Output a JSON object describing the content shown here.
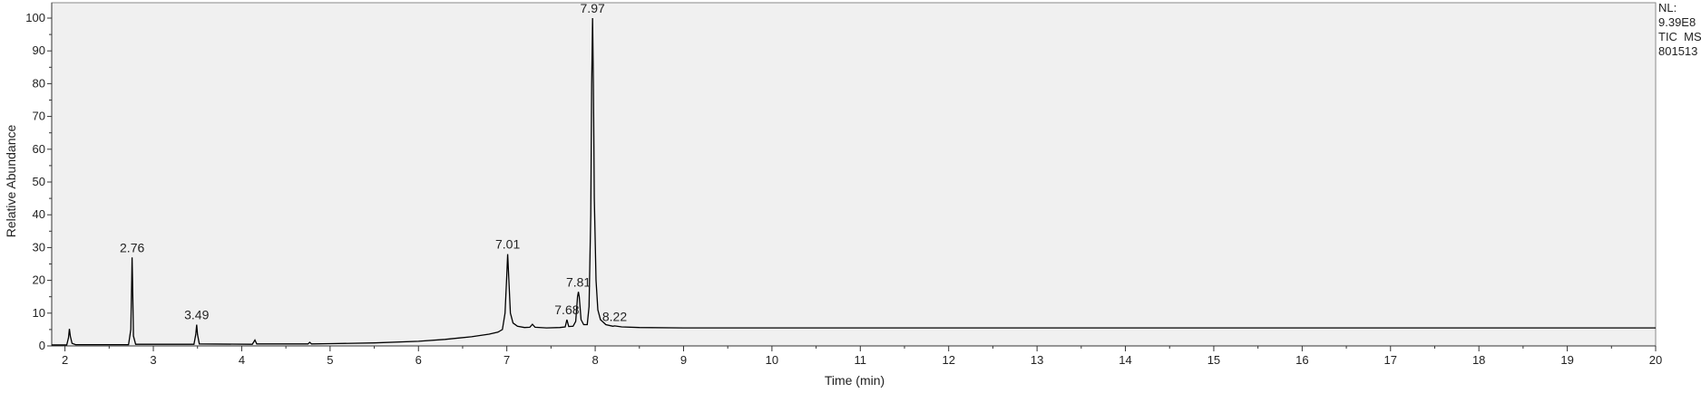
{
  "chart_data": {
    "type": "line",
    "xlabel": "Time (min)",
    "ylabel": "Relative Abundance",
    "xlim": [
      1.85,
      20
    ],
    "ylim": [
      0,
      100
    ],
    "xticks": [
      2,
      3,
      4,
      5,
      6,
      7,
      8,
      9,
      10,
      11,
      12,
      13,
      14,
      15,
      16,
      17,
      18,
      19,
      20
    ],
    "yticks": [
      0,
      10,
      20,
      30,
      40,
      50,
      60,
      70,
      80,
      90,
      100
    ],
    "grid": false,
    "info_lines": [
      "NL:",
      "9.39E8",
      "TIC  MS",
      "801513"
    ],
    "peak_labels": [
      {
        "label": "2.76",
        "x": 2.76,
        "y": 27
      },
      {
        "label": "3.49",
        "x": 3.49,
        "y": 6.5
      },
      {
        "label": "7.01",
        "x": 7.01,
        "y": 28
      },
      {
        "label": "7.68",
        "x": 7.68,
        "y": 8
      },
      {
        "label": "7.81",
        "x": 7.81,
        "y": 16.5
      },
      {
        "label": "7.97",
        "x": 7.97,
        "y": 100
      },
      {
        "label": "8.22",
        "x": 8.22,
        "y": 6
      }
    ],
    "series": [
      {
        "values": [
          [
            1.85,
            0.3
          ],
          [
            2.02,
            0.3
          ],
          [
            2.04,
            2.5
          ],
          [
            2.05,
            5.2
          ],
          [
            2.06,
            3.0
          ],
          [
            2.08,
            0.8
          ],
          [
            2.12,
            0.4
          ],
          [
            2.5,
            0.4
          ],
          [
            2.72,
            0.4
          ],
          [
            2.745,
            5
          ],
          [
            2.755,
            20
          ],
          [
            2.76,
            27
          ],
          [
            2.765,
            20
          ],
          [
            2.775,
            3
          ],
          [
            2.8,
            0.5
          ],
          [
            3.2,
            0.5
          ],
          [
            3.46,
            0.5
          ],
          [
            3.48,
            3.5
          ],
          [
            3.49,
            6.5
          ],
          [
            3.5,
            3.5
          ],
          [
            3.52,
            0.6
          ],
          [
            4.12,
            0.5
          ],
          [
            4.15,
            1.8
          ],
          [
            4.17,
            0.6
          ],
          [
            4.5,
            0.6
          ],
          [
            4.75,
            0.6
          ],
          [
            4.77,
            1.1
          ],
          [
            4.79,
            0.6
          ],
          [
            5.0,
            0.7
          ],
          [
            5.5,
            0.9
          ],
          [
            6.0,
            1.4
          ],
          [
            6.3,
            2.0
          ],
          [
            6.6,
            2.8
          ],
          [
            6.8,
            3.6
          ],
          [
            6.9,
            4.2
          ],
          [
            6.95,
            5
          ],
          [
            6.98,
            10
          ],
          [
            7.0,
            22
          ],
          [
            7.01,
            28
          ],
          [
            7.02,
            22
          ],
          [
            7.04,
            10
          ],
          [
            7.07,
            7
          ],
          [
            7.12,
            6
          ],
          [
            7.2,
            5.6
          ],
          [
            7.26,
            5.7
          ],
          [
            7.29,
            6.6
          ],
          [
            7.32,
            5.7
          ],
          [
            7.45,
            5.5
          ],
          [
            7.6,
            5.6
          ],
          [
            7.66,
            5.8
          ],
          [
            7.68,
            8
          ],
          [
            7.7,
            5.9
          ],
          [
            7.75,
            6.0
          ],
          [
            7.78,
            7.5
          ],
          [
            7.8,
            15
          ],
          [
            7.81,
            16.5
          ],
          [
            7.82,
            15
          ],
          [
            7.84,
            8
          ],
          [
            7.87,
            6.5
          ],
          [
            7.91,
            6.5
          ],
          [
            7.93,
            12
          ],
          [
            7.95,
            40
          ],
          [
            7.96,
            80
          ],
          [
            7.97,
            100
          ],
          [
            7.98,
            80
          ],
          [
            7.99,
            45
          ],
          [
            8.01,
            20
          ],
          [
            8.03,
            11
          ],
          [
            8.06,
            8
          ],
          [
            8.12,
            6.5
          ],
          [
            8.2,
            6.0
          ],
          [
            8.22,
            6.1
          ],
          [
            8.3,
            5.8
          ],
          [
            8.5,
            5.6
          ],
          [
            9,
            5.5
          ],
          [
            10,
            5.5
          ],
          [
            11,
            5.5
          ],
          [
            12,
            5.5
          ],
          [
            13,
            5.5
          ],
          [
            14,
            5.5
          ],
          [
            15,
            5.5
          ],
          [
            16,
            5.5
          ],
          [
            17,
            5.5
          ],
          [
            18,
            5.5
          ],
          [
            19,
            5.5
          ],
          [
            20,
            5.5
          ]
        ]
      }
    ]
  }
}
